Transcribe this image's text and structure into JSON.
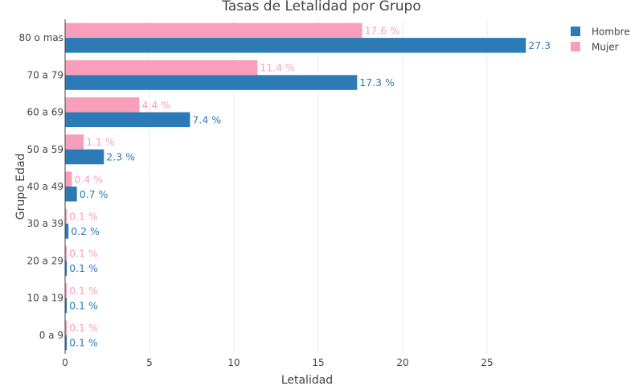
{
  "chart_data": {
    "type": "bar",
    "orientation": "horizontal",
    "title": "Tasas de Letalidad por Grupo",
    "xlabel": "Letalidad",
    "ylabel": "Grupo Edad",
    "xlim": [
      0,
      30
    ],
    "x_ticks": [
      "0",
      "5",
      "10",
      "15",
      "20",
      "25"
    ],
    "x_tick_values": [
      0,
      5,
      10,
      15,
      20,
      25
    ],
    "grid": true,
    "legend_position": "top-right",
    "categories": [
      "80 o mas",
      "70 a 79",
      "60 a 69",
      "50 a 59",
      "40 a 49",
      "30 a 39",
      "20 a 29",
      "10 a 19",
      "0 a 9"
    ],
    "series": [
      {
        "name": "Mujer",
        "color": "#f99fbb",
        "values": [
          17.6,
          11.4,
          4.4,
          1.1,
          0.4,
          0.1,
          0.1,
          0.1,
          0.1
        ],
        "labels": [
          "17.6 %",
          "11.4 %",
          "4.4 %",
          "1.1 %",
          "0.4 %",
          "0.1 %",
          "0.1 %",
          "0.1 %",
          "0.1 %"
        ]
      },
      {
        "name": "Hombre",
        "color": "#2c7bb6",
        "values": [
          27.3,
          17.3,
          7.4,
          2.3,
          0.7,
          0.2,
          0.1,
          0.1,
          0.1
        ],
        "labels": [
          "27.3",
          "17.3 %",
          "7.4 %",
          "2.3 %",
          "0.7 %",
          "0.2 %",
          "0.1 %",
          "0.1 %",
          "0.1 %"
        ]
      }
    ],
    "legend": [
      {
        "name": "Hombre",
        "color": "#2c7bb6"
      },
      {
        "name": "Mujer",
        "color": "#f99fbb"
      }
    ]
  }
}
